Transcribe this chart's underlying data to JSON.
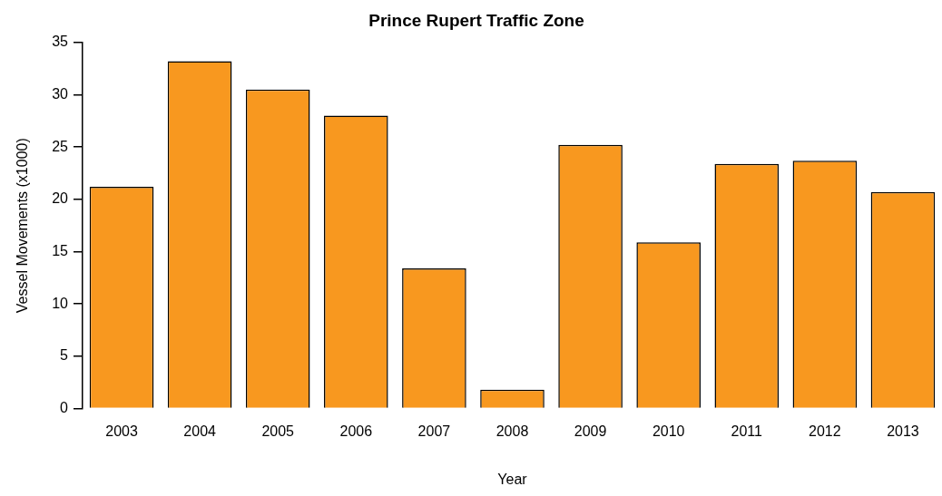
{
  "chart_data": {
    "type": "bar",
    "title": "Prince Rupert Traffic Zone",
    "xlabel": "Year",
    "ylabel": "Vessel Movements (x1000)",
    "categories": [
      "2003",
      "2004",
      "2005",
      "2006",
      "2007",
      "2008",
      "2009",
      "2010",
      "2011",
      "2012",
      "2013"
    ],
    "values": [
      21.2,
      33.2,
      30.5,
      28.0,
      13.4,
      1.8,
      25.2,
      15.9,
      23.4,
      23.7,
      20.7
    ],
    "color": "#f8981f",
    "ylim": [
      0,
      35
    ],
    "yticks": [
      0,
      5,
      10,
      15,
      20,
      25,
      30,
      35
    ],
    "grid": false,
    "legend": false
  }
}
